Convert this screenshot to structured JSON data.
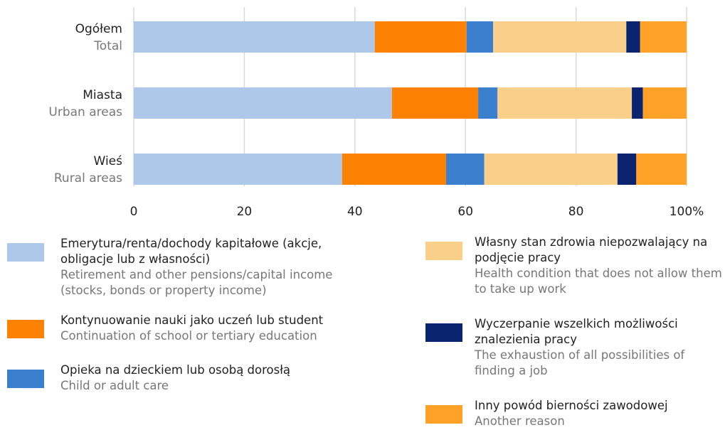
{
  "chart_data": {
    "type": "stacked-bar-horizontal",
    "categories": [
      "Ogółem",
      "Miasta",
      "Wieś"
    ],
    "categories_en": [
      "Total",
      "Urban areas",
      "Rural areas"
    ],
    "xlim": [
      0,
      100
    ],
    "xticks": [
      0,
      20,
      40,
      60,
      80,
      {
        "value": 100,
        "label": "100%"
      }
    ],
    "grid": true,
    "series": [
      {
        "name": "Emerytura/renta/dochody kapitałowe (akcje, obligacje lub z własności)",
        "name_en": "Retirement and other pensions/capital income (stocks, bonds or property income)",
        "color": "#aec8ea",
        "values": [
          43.6,
          46.7,
          37.7
        ]
      },
      {
        "name": "Kontynuowanie nauki jako uczeń lub student",
        "name_en": "Continuation of school or tertiary education",
        "color": "#fd8204",
        "values": [
          16.6,
          15.6,
          18.8
        ]
      },
      {
        "name": "Opieka na dzieckiem lub osobą dorosłą",
        "name_en": "Child or adult care",
        "color": "#3b7fcf",
        "values": [
          4.8,
          3.5,
          6.9
        ]
      },
      {
        "name": "Własny stan zdrowia niepozwalający na podjęcie pracy",
        "name_en": "Health condition that does not allow them to take up work",
        "color": "#f9cf8a",
        "values": [
          24.1,
          24.3,
          24.1
        ]
      },
      {
        "name": "Wyczerpanie wszelkich możliwości znalezienia pracy",
        "name_en": "The exhaustion of all possibilities of finding a job",
        "color": "#0b2470",
        "values": [
          2.5,
          2.0,
          3.4
        ]
      },
      {
        "name": "Inny powód bierności zawodowej",
        "name_en": "Another reason",
        "color": "#ffa227",
        "values": [
          8.4,
          7.9,
          9.1
        ]
      }
    ]
  }
}
